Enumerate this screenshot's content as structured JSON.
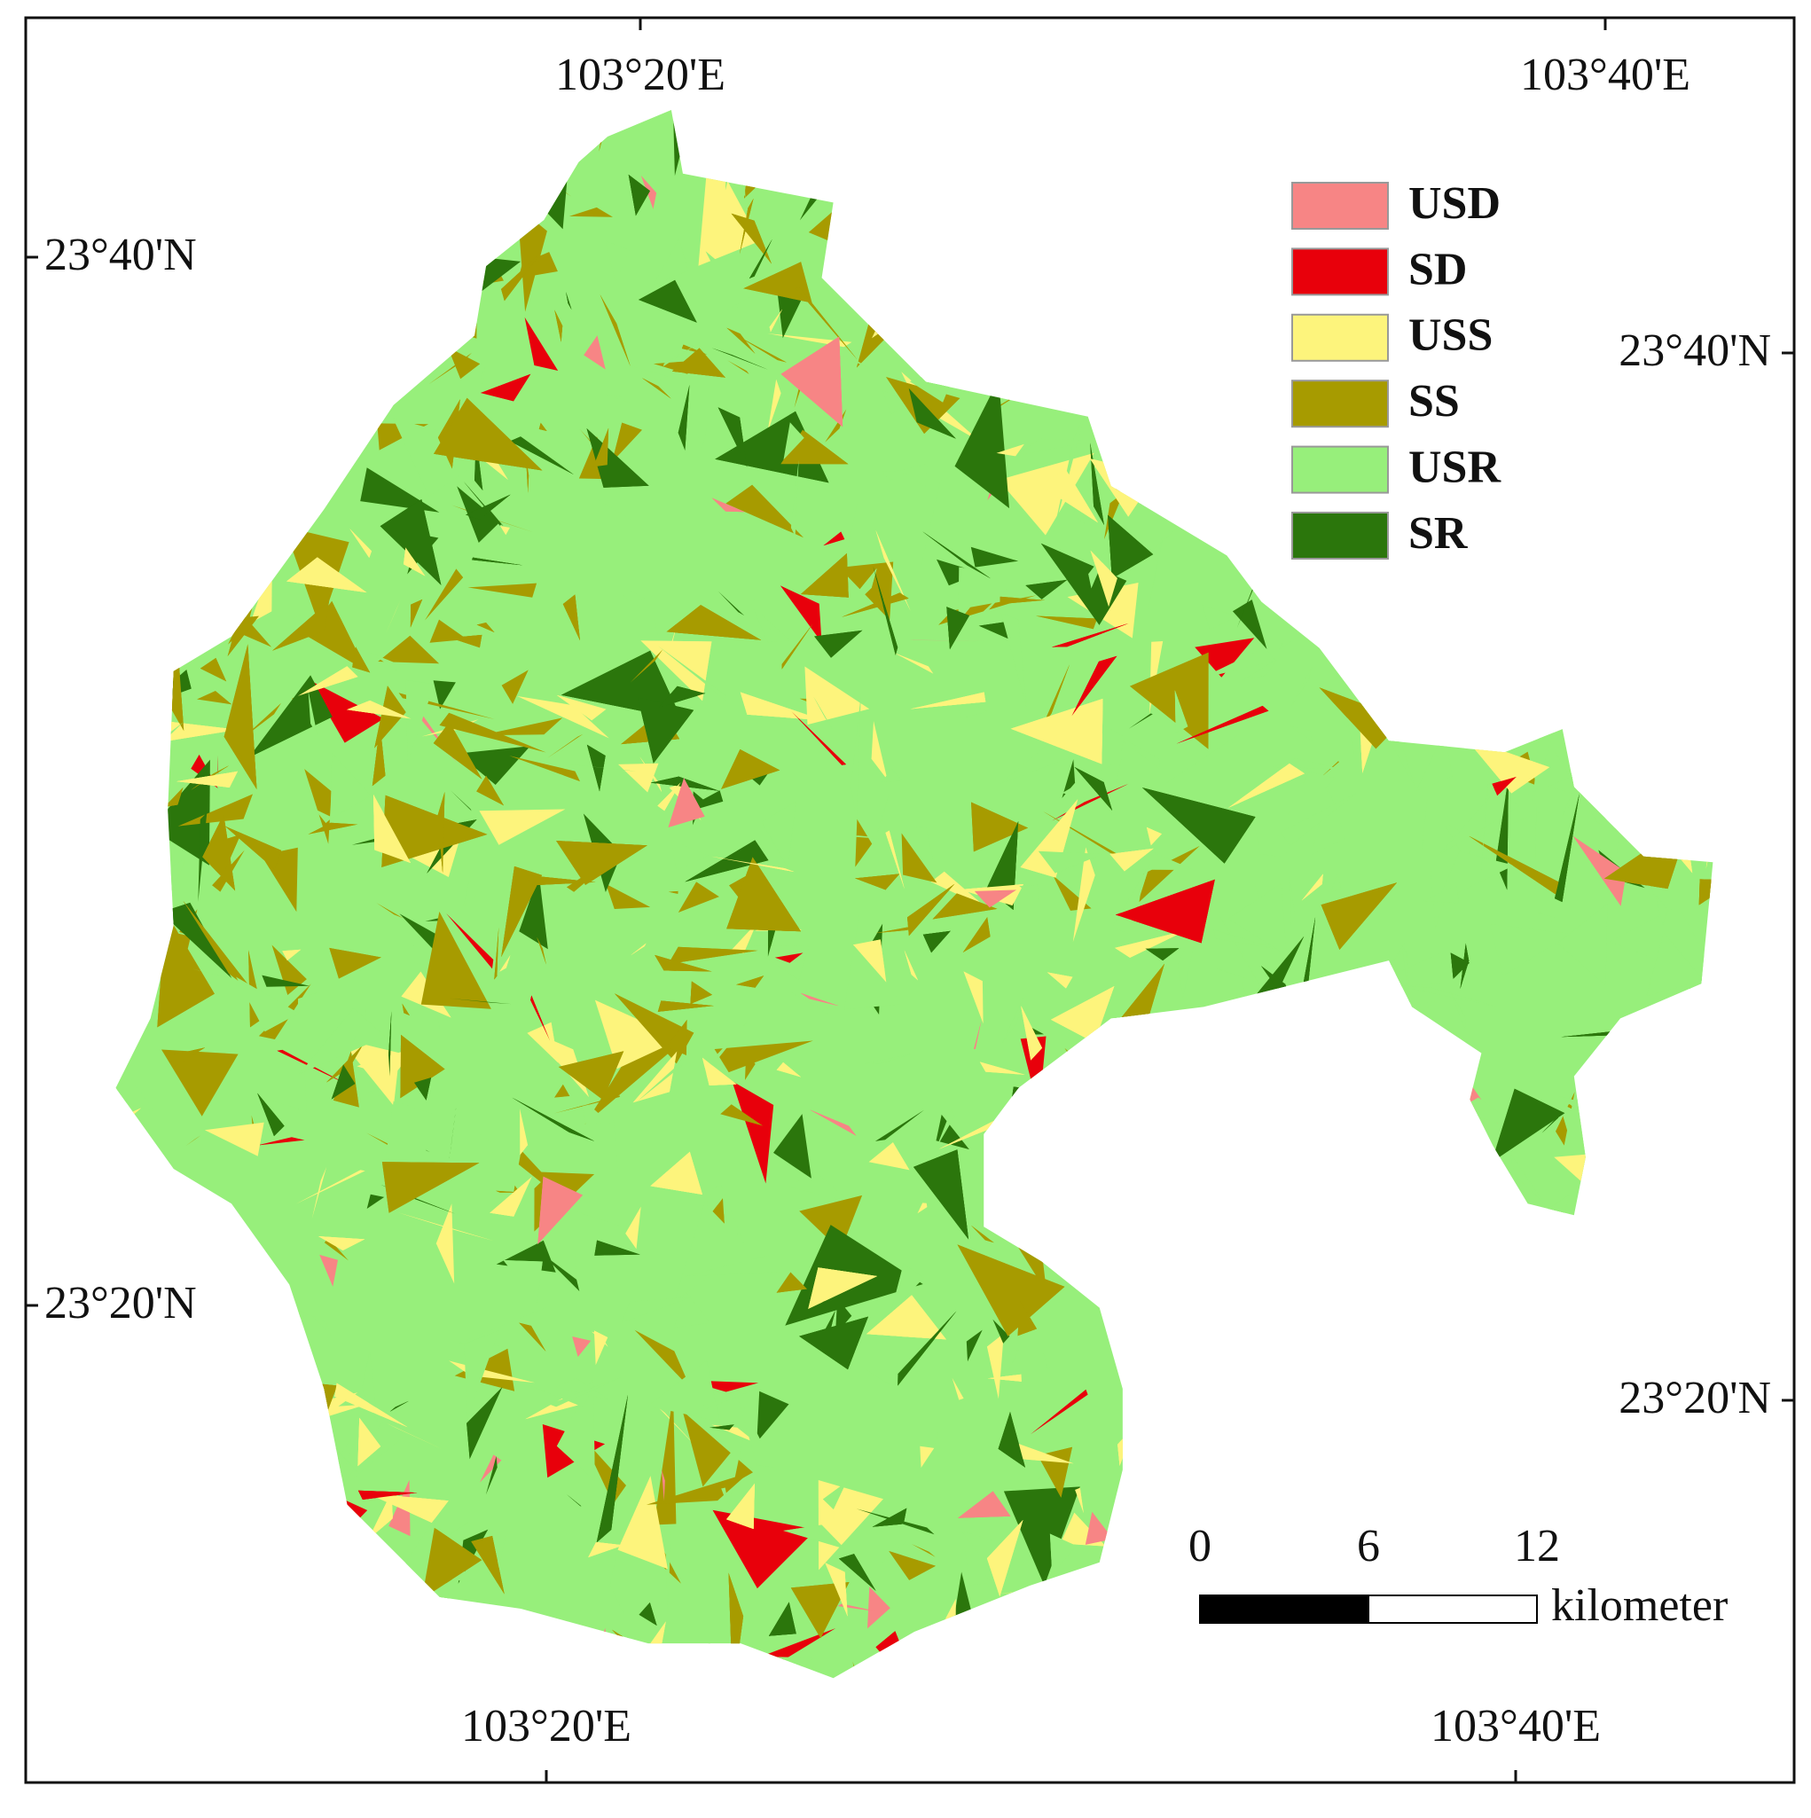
{
  "map": {
    "graticule": {
      "top": [
        "103°20'E",
        "103°40'E"
      ],
      "bottom": [
        "103°20'E",
        "103°40'E"
      ],
      "left": [
        "23°40'N",
        "23°20'N"
      ],
      "right": [
        "23°40'N",
        "23°20'N"
      ]
    },
    "legend": [
      {
        "label": "USD",
        "color": "#f78585"
      },
      {
        "label": "SD",
        "color": "#e8000b"
      },
      {
        "label": "USS",
        "color": "#fdf47c"
      },
      {
        "label": "SS",
        "color": "#a79b00"
      },
      {
        "label": "USR",
        "color": "#97ef7b"
      },
      {
        "label": "SR",
        "color": "#2b760c"
      }
    ],
    "scale_bar": {
      "ticks": [
        0,
        6,
        12
      ],
      "unit": "kilometer"
    }
  }
}
